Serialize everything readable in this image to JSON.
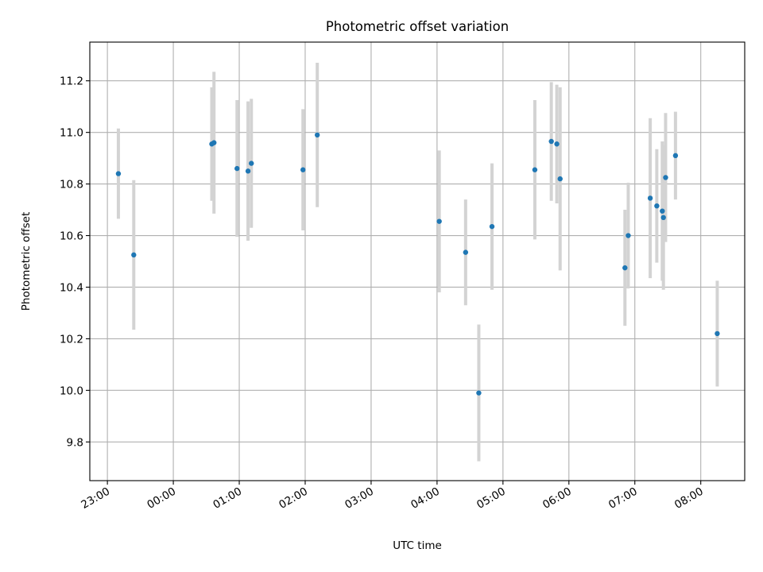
{
  "chart_data": {
    "type": "scatter",
    "title": "Photometric offset variation",
    "xlabel": "UTC time",
    "ylabel": "Photometric offset",
    "grid": true,
    "x_axis": {
      "kind": "time",
      "range": [
        "22:44",
        "08:40"
      ],
      "ticks": [
        "23:00",
        "00:00",
        "01:00",
        "02:00",
        "03:00",
        "04:00",
        "05:00",
        "06:00",
        "07:00",
        "08:00"
      ]
    },
    "y_axis": {
      "range": [
        9.65,
        11.35
      ],
      "ticks": [
        9.8,
        10.0,
        10.2,
        10.4,
        10.6,
        10.8,
        11.0,
        11.2
      ],
      "tick_labels": [
        "9.8",
        "10.0",
        "10.2",
        "10.4",
        "10.6",
        "10.8",
        "11.0",
        "11.2"
      ]
    },
    "colors": {
      "points": "#1f77b4",
      "errorbars": "#d3d3d3"
    },
    "points": [
      {
        "t": "23:10",
        "y": 10.84,
        "err": 0.175
      },
      {
        "t": "23:24",
        "y": 10.525,
        "err": 0.29
      },
      {
        "t": "00:35",
        "y": 10.955,
        "err": 0.22
      },
      {
        "t": "00:37",
        "y": 10.96,
        "err": 0.275
      },
      {
        "t": "00:58",
        "y": 10.86,
        "err": 0.265
      },
      {
        "t": "01:08",
        "y": 10.85,
        "err": 0.27
      },
      {
        "t": "01:11",
        "y": 10.88,
        "err": 0.25
      },
      {
        "t": "01:58",
        "y": 10.855,
        "err": 0.235
      },
      {
        "t": "02:11",
        "y": 10.99,
        "err": 0.28
      },
      {
        "t": "04:02",
        "y": 10.655,
        "err": 0.275
      },
      {
        "t": "04:26",
        "y": 10.535,
        "err": 0.205
      },
      {
        "t": "04:38",
        "y": 9.99,
        "err": 0.265
      },
      {
        "t": "04:50",
        "y": 10.635,
        "err": 0.245
      },
      {
        "t": "05:29",
        "y": 10.855,
        "err": 0.27
      },
      {
        "t": "05:44",
        "y": 10.965,
        "err": 0.23
      },
      {
        "t": "05:49",
        "y": 10.955,
        "err": 0.23
      },
      {
        "t": "05:52",
        "y": 10.82,
        "err": 0.355
      },
      {
        "t": "06:51",
        "y": 10.475,
        "err": 0.225
      },
      {
        "t": "06:54",
        "y": 10.6,
        "err": 0.205
      },
      {
        "t": "07:14",
        "y": 10.745,
        "err": 0.31
      },
      {
        "t": "07:20",
        "y": 10.715,
        "err": 0.22
      },
      {
        "t": "07:25",
        "y": 10.695,
        "err": 0.27
      },
      {
        "t": "07:26",
        "y": 10.67,
        "err": 0.28
      },
      {
        "t": "07:28",
        "y": 10.825,
        "err": 0.25
      },
      {
        "t": "07:37",
        "y": 10.91,
        "err": 0.17
      },
      {
        "t": "08:15",
        "y": 10.22,
        "err": 0.205
      }
    ]
  }
}
